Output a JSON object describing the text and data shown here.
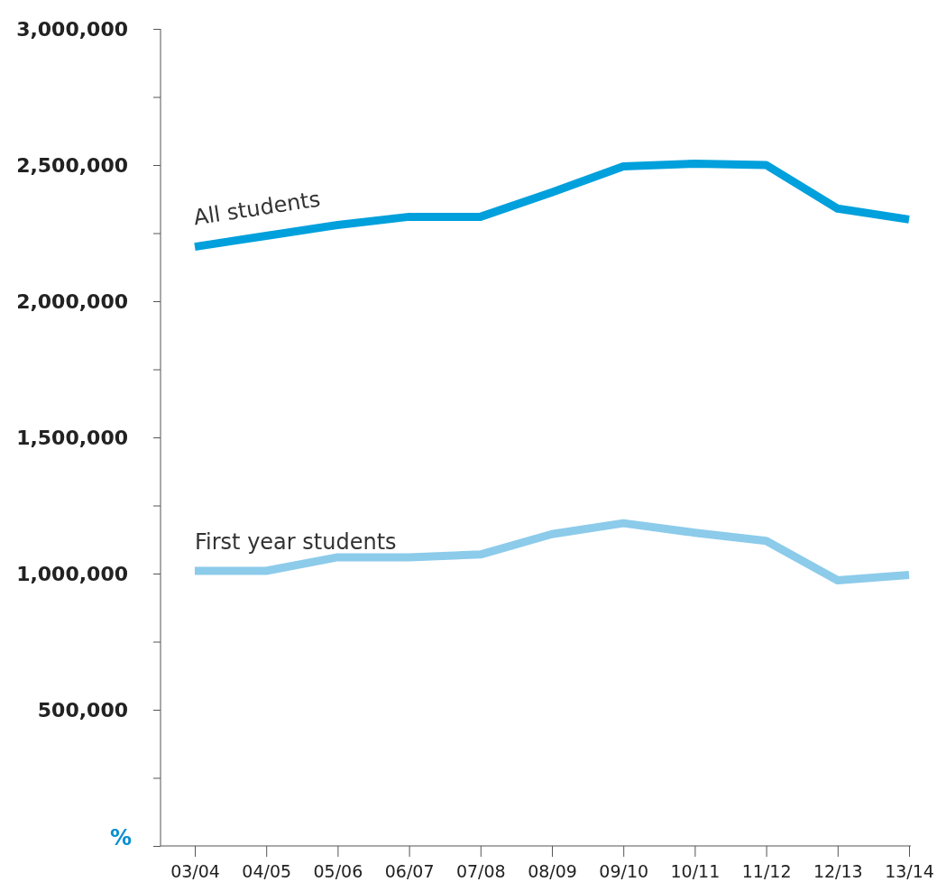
{
  "chart_data": {
    "type": "line",
    "ylabel": "%",
    "categories": [
      "03/04",
      "04/05",
      "05/06",
      "06/07",
      "07/08",
      "08/09",
      "09/10",
      "10/11",
      "11/12",
      "12/13",
      "13/14"
    ],
    "series": [
      {
        "name": "All students",
        "color": "#00a0dc",
        "values": [
          2200000,
          2240000,
          2280000,
          2310000,
          2310000,
          2400000,
          2495000,
          2505000,
          2500000,
          2340000,
          2300000
        ]
      },
      {
        "name": "First year students",
        "color": "#8ccbea",
        "values": [
          1010000,
          1010000,
          1060000,
          1060000,
          1070000,
          1145000,
          1185000,
          1150000,
          1120000,
          975000,
          995000
        ]
      }
    ],
    "ylim": [
      0,
      3000000
    ],
    "yticks": [
      {
        "value": 0,
        "label": null
      },
      {
        "value": 250000,
        "label": null
      },
      {
        "value": 500000,
        "label": "500,000"
      },
      {
        "value": 750000,
        "label": null
      },
      {
        "value": 1000000,
        "label": "1,000,000"
      },
      {
        "value": 1250000,
        "label": null
      },
      {
        "value": 1500000,
        "label": "1,500,000"
      },
      {
        "value": 1750000,
        "label": null
      },
      {
        "value": 2000000,
        "label": "2,000,000"
      },
      {
        "value": 2250000,
        "label": null
      },
      {
        "value": 2500000,
        "label": "2,500,000"
      },
      {
        "value": 2750000,
        "label": null
      },
      {
        "value": 3000000,
        "label": "3,000,000"
      }
    ],
    "grid": false,
    "legend": false,
    "marker": "none",
    "line_style": "solid"
  }
}
